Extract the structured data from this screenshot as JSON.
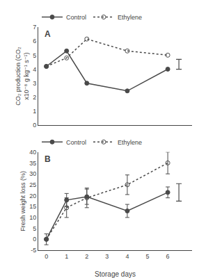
{
  "chart_data": [
    {
      "type": "line",
      "y_label": "CO₂ production (CO₂ x10⁻⁸ g kg⁻¹ s⁻¹)",
      "x": [
        0,
        1,
        2,
        4,
        6
      ],
      "series": [
        {
          "name": "Control",
          "values": [
            4.2,
            5.3,
            3.0,
            2.45,
            4.0
          ],
          "marker": "circle",
          "line_style": "solid"
        },
        {
          "name": "Ethylene",
          "values": [
            4.2,
            4.8,
            6.15,
            5.3,
            5.0
          ],
          "marker": "circle-open",
          "line_style": "dotted"
        }
      ],
      "lsd": {
        "x": 6.55,
        "y": 4.35,
        "error": 0.35
      },
      "xlim": [
        -0.4,
        7.2
      ],
      "xticks": [
        0,
        1,
        2,
        3,
        4,
        5,
        6
      ],
      "ylim": [
        0,
        7
      ],
      "yticks": [
        0,
        1,
        2,
        3,
        4,
        5,
        6,
        7
      ],
      "tick_labels": "y",
      "grid": false,
      "legend": "upper left",
      "color": "#4a4a4a",
      "annotations": [
        "A"
      ]
    },
    {
      "type": "line",
      "x_label": "Storage days",
      "y_label": "Fresh weight loss (%)",
      "x": [
        0,
        1,
        2,
        4,
        6
      ],
      "series": [
        {
          "name": "Control",
          "values": [
            0.0,
            18.0,
            19.5,
            13.0,
            21.5
          ],
          "errors": [
            2.5,
            3.0,
            3.5,
            3.0,
            2.5
          ],
          "marker": "circle",
          "line_style": "solid"
        },
        {
          "name": "Ethylene",
          "values": [
            0.0,
            14.5,
            19.0,
            25.0,
            35.0
          ],
          "errors": [
            0.3,
            4.5,
            4.5,
            4.5,
            5.0
          ],
          "marker": "circle-open",
          "line_style": "dotted"
        }
      ],
      "lsd": {
        "x": 6.55,
        "y": 21.5,
        "error": 4.0
      },
      "xlim": [
        -0.4,
        7.2
      ],
      "xticks": [
        0,
        1,
        2,
        3,
        4,
        5,
        6
      ],
      "ylim": [
        -5,
        40
      ],
      "yticks": [
        -5,
        0,
        5,
        10,
        15,
        20,
        25,
        30,
        35,
        40
      ],
      "grid": false,
      "legend": "upper left",
      "color": "#4a4a4a",
      "annotations": [
        "B"
      ]
    }
  ]
}
